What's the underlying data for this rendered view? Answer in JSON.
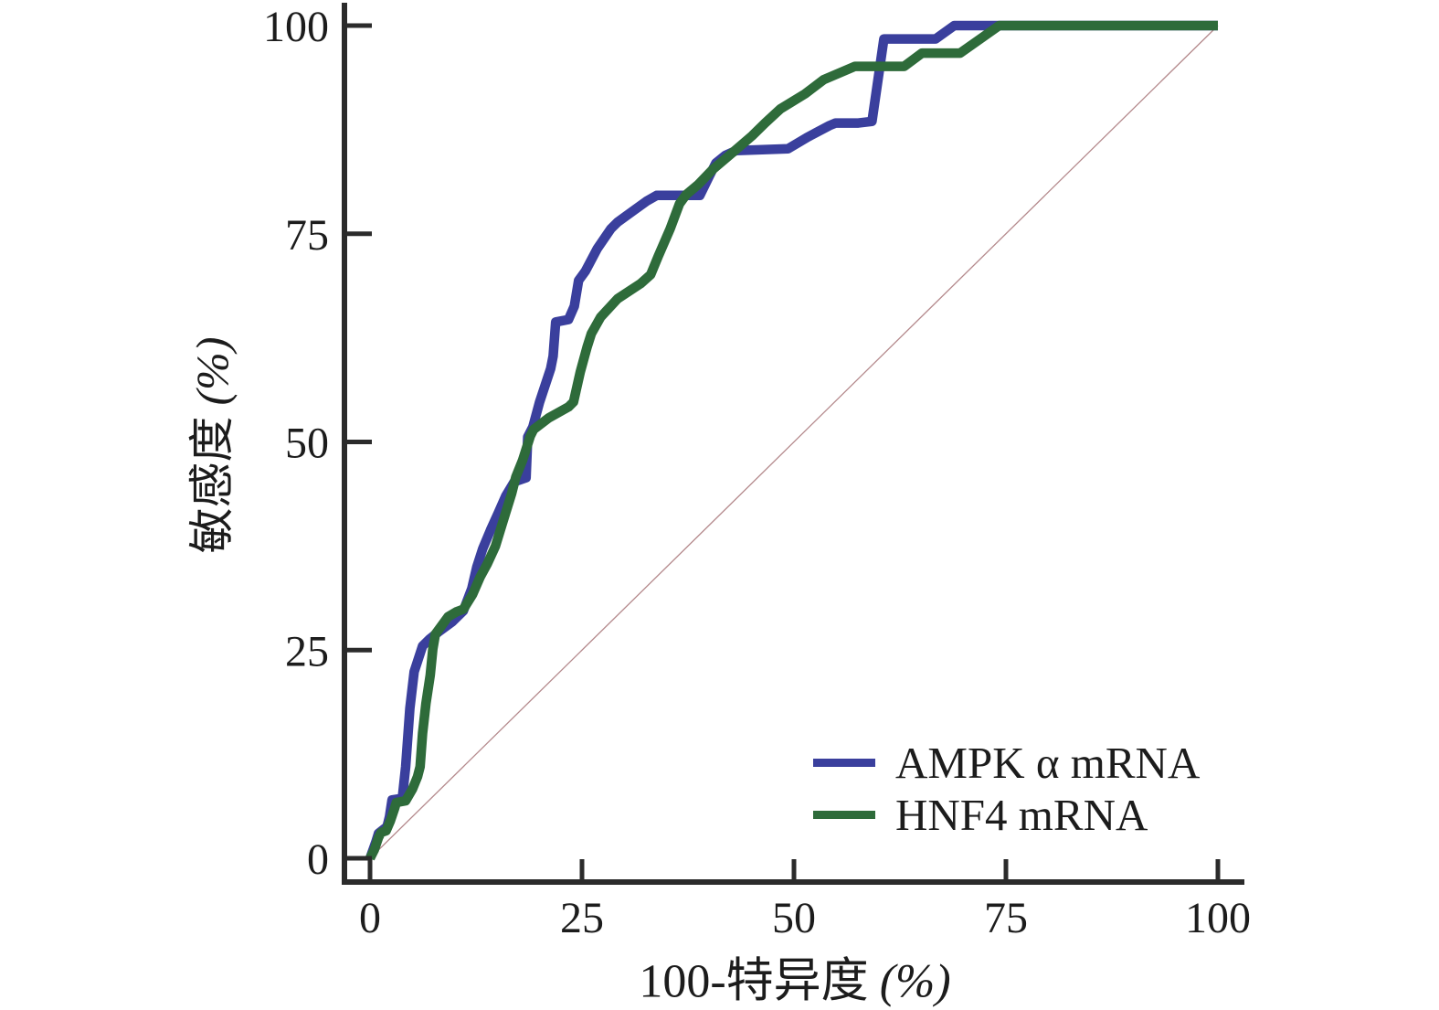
{
  "figure": {
    "background": "#ffffff"
  },
  "chart_data": {
    "type": "line",
    "subtype": "roc-curves",
    "title": "",
    "xaxis": {
      "label": "100-特异度",
      "unit": "(%)",
      "ticks": [
        0,
        25,
        50,
        75,
        100
      ],
      "range": [
        0,
        100
      ]
    },
    "yaxis": {
      "label": "敏感度",
      "unit": "(%)",
      "ticks": [
        0,
        25,
        50,
        75,
        100
      ],
      "range": [
        0,
        100
      ]
    },
    "axis_color": "#2b2b2b",
    "tick_label_color": "#1c1c1c",
    "grid": false,
    "legend_position": "bottom-right",
    "reference_line": {
      "name": "chance-diagonal",
      "from": [
        0,
        0
      ],
      "to": [
        100,
        100
      ],
      "color": "#b4898c"
    },
    "series": [
      {
        "key": "ampk",
        "name": "AMPK α mRNA",
        "color": "#3a3f9d",
        "points": [
          [
            0,
            0
          ],
          [
            0.7,
            2
          ],
          [
            1,
            3
          ],
          [
            2,
            3.8
          ],
          [
            2.3,
            5
          ],
          [
            2.6,
            7
          ],
          [
            3.8,
            7.2
          ],
          [
            4.2,
            11
          ],
          [
            4.7,
            18
          ],
          [
            5.2,
            22.4
          ],
          [
            6.2,
            25.5
          ],
          [
            7,
            26.3
          ],
          [
            8.1,
            27.2
          ],
          [
            9.7,
            28.4
          ],
          [
            11,
            29.7
          ],
          [
            12,
            32.4
          ],
          [
            12.6,
            35
          ],
          [
            13.3,
            37.2
          ],
          [
            14.2,
            39.4
          ],
          [
            15.1,
            41.4
          ],
          [
            16,
            43.5
          ],
          [
            17,
            45.2
          ],
          [
            18.4,
            45.7
          ],
          [
            18.6,
            50.6
          ],
          [
            19.2,
            51.8
          ],
          [
            20,
            54.8
          ],
          [
            21.3,
            58.8
          ],
          [
            21.6,
            60.3
          ],
          [
            21.9,
            64.4
          ],
          [
            23.4,
            64.7
          ],
          [
            24.1,
            66.3
          ],
          [
            24.6,
            69.4
          ],
          [
            25.4,
            70.5
          ],
          [
            26.8,
            73.2
          ],
          [
            28.4,
            75.6
          ],
          [
            29.2,
            76.4
          ],
          [
            31.1,
            77.8
          ],
          [
            32.6,
            78.9
          ],
          [
            33.8,
            79.6
          ],
          [
            38.9,
            79.6
          ],
          [
            40,
            81.9
          ],
          [
            40.8,
            83.5
          ],
          [
            41.9,
            84.4
          ],
          [
            43.2,
            85
          ],
          [
            49.3,
            85.2
          ],
          [
            51.6,
            86.6
          ],
          [
            54.2,
            88
          ],
          [
            54.9,
            88.3
          ],
          [
            57.6,
            88.3
          ],
          [
            59.2,
            88.5
          ],
          [
            60.6,
            98.4
          ],
          [
            66.7,
            98.4
          ],
          [
            68.9,
            100
          ],
          [
            100,
            100
          ]
        ]
      },
      {
        "key": "hnf4",
        "name": "HNF4 mRNA",
        "color": "#2e6b3a",
        "points": [
          [
            0,
            0
          ],
          [
            0.5,
            1
          ],
          [
            1,
            2.5
          ],
          [
            1.3,
            3.1
          ],
          [
            1.9,
            3.3
          ],
          [
            2.4,
            4.5
          ],
          [
            2.9,
            6
          ],
          [
            3.1,
            6.7
          ],
          [
            4.2,
            6.9
          ],
          [
            5,
            8.3
          ],
          [
            5.6,
            9.8
          ],
          [
            5.9,
            11
          ],
          [
            6.2,
            15
          ],
          [
            6.6,
            18.6
          ],
          [
            7.1,
            22
          ],
          [
            7.4,
            25.1
          ],
          [
            7.7,
            26.9
          ],
          [
            9.2,
            29
          ],
          [
            10.2,
            29.6
          ],
          [
            11,
            29.9
          ],
          [
            12.1,
            31.7
          ],
          [
            13,
            33.8
          ],
          [
            13.8,
            35.3
          ],
          [
            14.8,
            37.5
          ],
          [
            15.6,
            40.2
          ],
          [
            16.7,
            43.8
          ],
          [
            17.2,
            45.8
          ],
          [
            18,
            47.8
          ],
          [
            18.9,
            50.7
          ],
          [
            19.3,
            51.5
          ],
          [
            21.1,
            52.9
          ],
          [
            23.4,
            54.2
          ],
          [
            24,
            54.8
          ],
          [
            24.8,
            58.4
          ],
          [
            25.6,
            61.4
          ],
          [
            26.1,
            63
          ],
          [
            27.2,
            65
          ],
          [
            29.2,
            67.2
          ],
          [
            31.9,
            69
          ],
          [
            33.1,
            70.1
          ],
          [
            34,
            72.3
          ],
          [
            35.4,
            75.6
          ],
          [
            36.5,
            78.6
          ],
          [
            37.3,
            79.7
          ],
          [
            38.7,
            80.9
          ],
          [
            40.5,
            82.8
          ],
          [
            42.7,
            84.7
          ],
          [
            45.1,
            86.8
          ],
          [
            46.6,
            88.3
          ],
          [
            48.4,
            90
          ],
          [
            51.3,
            91.8
          ],
          [
            53.5,
            93.5
          ],
          [
            57.2,
            95.1
          ],
          [
            63,
            95.1
          ],
          [
            65.1,
            96.7
          ],
          [
            69.6,
            96.7
          ],
          [
            74.2,
            100
          ],
          [
            100,
            100
          ]
        ]
      }
    ]
  }
}
